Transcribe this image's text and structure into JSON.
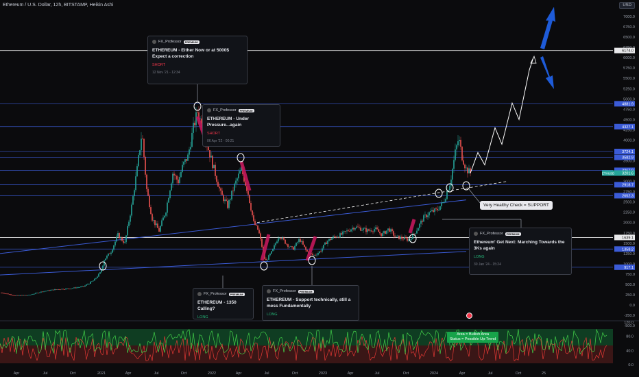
{
  "header": {
    "title": "Ethereum / U.S. Dollar, 12h, BITSTAMP, Heikin Ashi",
    "currency": "USD"
  },
  "colors": {
    "bg": "#0b0b0d",
    "up": "#26a69a",
    "down": "#ef5350",
    "hline": "#3b5bd6",
    "white": "#ffffff",
    "arrow": "#1e5bd8",
    "pink": "#c2185b"
  },
  "chart_data": {
    "type": "candlestick",
    "price_axis_ticks": [
      7000,
      6750,
      6500,
      6250,
      6000,
      5750,
      5500,
      5250,
      5000,
      4750,
      4500,
      4250,
      4000,
      3750,
      3500,
      3250,
      3000,
      2750,
      2500,
      2250,
      2000,
      1750,
      1500,
      1250,
      1000,
      750,
      500,
      250,
      0,
      -250,
      -500
    ],
    "price_tick_labels": [
      "7000.0",
      "6750.0",
      "6500.0",
      "6250.0",
      "6000.0",
      "5750.0",
      "5500.0",
      "5250.0",
      "5000.0",
      "4750.0",
      "4500.0",
      "4250.0",
      "4000.0",
      "3750.0",
      "3500.0",
      "3250.0",
      "3000.0",
      "2750.0",
      "2500.0",
      "2250.0",
      "2000.0",
      "1750.0",
      "1500.0",
      "1250.0",
      "1000.0",
      "750.0",
      "500.0",
      "250.0",
      "0.0",
      "-250.0",
      "-500.0"
    ],
    "x_ticks": [
      "Apr",
      "Jul",
      "Oct",
      "2021",
      "Apr",
      "Jul",
      "Oct",
      "2022",
      "Apr",
      "Jul",
      "Oct",
      "2023",
      "Apr",
      "Jul",
      "Oct",
      "2024",
      "Apr",
      "Jul",
      "Oct",
      "25"
    ],
    "horizontal_levels": [
      {
        "price": 6174.0,
        "label": "6174.0",
        "color": "#ffffff"
      },
      {
        "price": 4881.9,
        "label": "4881.9",
        "color": "#3b5bd6"
      },
      {
        "price": 4327.1,
        "label": "4327.1",
        "color": "#3b5bd6"
      },
      {
        "price": 3724.1,
        "label": "3724.1",
        "color": "#3b5bd6"
      },
      {
        "price": 3582.9,
        "label": "3582.9",
        "color": "#3b5bd6"
      },
      {
        "price": 3267.9,
        "label": "3267.9",
        "color": "#3b5bd6"
      },
      {
        "price": 2918.7,
        "label": "2918.7",
        "color": "#3b5bd6"
      },
      {
        "price": 2652.3,
        "label": "2652.3",
        "color": "#3b5bd6"
      },
      {
        "price": 1639.1,
        "label": "1639.1",
        "color": "#ffffff"
      },
      {
        "price": 1358.2,
        "label": "1358.2",
        "color": "#3b5bd6"
      },
      {
        "price": 917.1,
        "label": "917.1",
        "color": "#3b5bd6"
      }
    ],
    "current_price": {
      "symbol": "ETHUSD",
      "value": "3201.6"
    },
    "price_path": [
      {
        "t": 0,
        "p": 300
      },
      {
        "t": 20,
        "p": 230
      },
      {
        "t": 40,
        "p": 240
      },
      {
        "t": 60,
        "p": 330
      },
      {
        "t": 80,
        "p": 380
      },
      {
        "t": 100,
        "p": 400
      },
      {
        "t": 120,
        "p": 450
      },
      {
        "t": 135,
        "p": 600
      },
      {
        "t": 145,
        "p": 800
      },
      {
        "t": 150,
        "p": 1100
      },
      {
        "t": 160,
        "p": 1300
      },
      {
        "t": 170,
        "p": 1700
      },
      {
        "t": 180,
        "p": 1500
      },
      {
        "t": 190,
        "p": 2400
      },
      {
        "t": 198,
        "p": 3300
      },
      {
        "t": 205,
        "p": 4200
      },
      {
        "t": 212,
        "p": 2800
      },
      {
        "t": 220,
        "p": 2100
      },
      {
        "t": 230,
        "p": 1800
      },
      {
        "t": 240,
        "p": 2300
      },
      {
        "t": 250,
        "p": 3200
      },
      {
        "t": 258,
        "p": 3000
      },
      {
        "t": 265,
        "p": 3400
      },
      {
        "t": 272,
        "p": 3600
      },
      {
        "t": 280,
        "p": 4300
      },
      {
        "t": 286,
        "p": 4700
      },
      {
        "t": 292,
        "p": 4400
      },
      {
        "t": 300,
        "p": 3900
      },
      {
        "t": 310,
        "p": 3300
      },
      {
        "t": 320,
        "p": 2700
      },
      {
        "t": 330,
        "p": 2400
      },
      {
        "t": 340,
        "p": 2900
      },
      {
        "t": 350,
        "p": 3300
      },
      {
        "t": 360,
        "p": 2700
      },
      {
        "t": 368,
        "p": 2000
      },
      {
        "t": 375,
        "p": 1800
      },
      {
        "t": 385,
        "p": 1050
      },
      {
        "t": 395,
        "p": 1300
      },
      {
        "t": 405,
        "p": 1700
      },
      {
        "t": 415,
        "p": 1500
      },
      {
        "t": 425,
        "p": 1350
      },
      {
        "t": 435,
        "p": 1600
      },
      {
        "t": 445,
        "p": 1300
      },
      {
        "t": 455,
        "p": 1200
      },
      {
        "t": 465,
        "p": 1300
      },
      {
        "t": 475,
        "p": 1550
      },
      {
        "t": 485,
        "p": 1650
      },
      {
        "t": 495,
        "p": 1700
      },
      {
        "t": 505,
        "p": 1800
      },
      {
        "t": 515,
        "p": 1900
      },
      {
        "t": 525,
        "p": 1850
      },
      {
        "t": 535,
        "p": 1800
      },
      {
        "t": 545,
        "p": 1850
      },
      {
        "t": 555,
        "p": 1700
      },
      {
        "t": 565,
        "p": 1850
      },
      {
        "t": 575,
        "p": 1650
      },
      {
        "t": 585,
        "p": 1620
      },
      {
        "t": 595,
        "p": 1580
      },
      {
        "t": 605,
        "p": 1800
      },
      {
        "t": 615,
        "p": 2100
      },
      {
        "t": 625,
        "p": 2250
      },
      {
        "t": 635,
        "p": 2300
      },
      {
        "t": 645,
        "p": 2500
      },
      {
        "t": 655,
        "p": 3000
      },
      {
        "t": 662,
        "p": 3700
      },
      {
        "t": 667,
        "p": 4050
      },
      {
        "t": 672,
        "p": 3600
      },
      {
        "t": 678,
        "p": 3300
      },
      {
        "t": 684,
        "p": 3200
      }
    ],
    "projection_path": [
      {
        "t": 684,
        "p": 3200
      },
      {
        "t": 695,
        "p": 3700
      },
      {
        "t": 705,
        "p": 3400
      },
      {
        "t": 720,
        "p": 4300
      },
      {
        "t": 730,
        "p": 3900
      },
      {
        "t": 745,
        "p": 4900
      },
      {
        "t": 755,
        "p": 4500
      },
      {
        "t": 770,
        "p": 5700
      },
      {
        "t": 776,
        "p": 6000
      }
    ]
  },
  "ideas": [
    {
      "author": "FX_Professor",
      "badge": "PREMIUM",
      "title": "ETHEREUM - Either Now or at 5000$ Expect a correction",
      "direction": "SHORT",
      "date": "12 Nov '21 - 12:34"
    },
    {
      "author": "FX_Professor",
      "badge": "PREMIUM",
      "title": "ETHEREUM - Under Pressure...again",
      "direction": "SHORT",
      "date": "06 Apr '22 - 00:21"
    },
    {
      "author": "FX_Professor",
      "badge": "PREMIUM",
      "title": "ETHEREUM - 1350 Calling?",
      "direction": "LONG",
      "date": ""
    },
    {
      "author": "FX_Professor",
      "badge": "PREMIUM",
      "title": "ETHEREUM - Support technically, still a mess Fundamentally",
      "direction": "LONG",
      "date": ""
    },
    {
      "author": "FX_Professor",
      "badge": "PREMIUM",
      "title": "Ethereum' Get Next: Marching Towards the 3Ks again",
      "direction": "LONG",
      "date": "30 Jan '24 - 15:24"
    }
  ],
  "callout": "Very Healthy Check = SUPPORT",
  "oscillator": {
    "ticks": [
      "120.0",
      "80.0",
      "40.0",
      "0.0"
    ],
    "legend_line1": "Area = Bullish Area",
    "legend_line2": "Status = Possible Up-Trend"
  }
}
